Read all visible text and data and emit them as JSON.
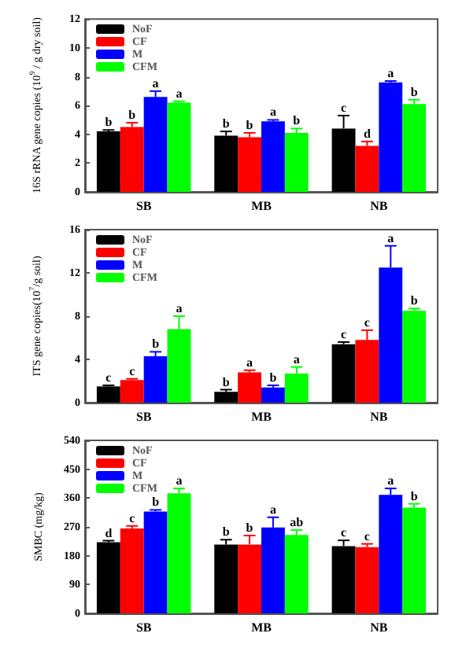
{
  "chart_data": [
    {
      "type": "bar",
      "ylabel": "16S rRNA gene copies (10$^{9}$ / g dry soil)",
      "categories": [
        "SB",
        "MB",
        "NB"
      ],
      "ylim": [
        0,
        12
      ],
      "yticks": [
        0,
        2,
        4,
        6,
        8,
        10,
        12
      ],
      "grid": false,
      "legend": "top left",
      "series": [
        {
          "name": "NoF",
          "color": "#000000",
          "values": [
            4.2,
            3.9,
            4.4
          ],
          "errors": [
            0.1,
            0.3,
            0.9
          ],
          "value_labels": [
            "b",
            "b",
            "c"
          ]
        },
        {
          "name": "CF",
          "color": "#ff0000",
          "values": [
            4.5,
            3.8,
            3.2
          ],
          "errors": [
            0.3,
            0.3,
            0.3
          ],
          "value_labels": [
            "b",
            "b",
            "d"
          ]
        },
        {
          "name": "M",
          "color": "#0000ff",
          "values": [
            6.6,
            4.9,
            7.6
          ],
          "errors": [
            0.4,
            0.1,
            0.1
          ],
          "value_labels": [
            "a",
            "a",
            "a"
          ]
        },
        {
          "name": "CFM",
          "color": "#00ff00",
          "values": [
            6.2,
            4.1,
            6.1
          ],
          "errors": [
            0.1,
            0.3,
            0.3
          ],
          "value_labels": [
            "a",
            "b",
            "b"
          ]
        }
      ]
    },
    {
      "type": "bar",
      "ylabel": "ITS gene copies(10$^{7}$/g soil)",
      "categories": [
        "SB",
        "MB",
        "NB"
      ],
      "ylim": [
        0,
        16
      ],
      "yticks": [
        0,
        4,
        8,
        12,
        16
      ],
      "grid": false,
      "legend": "top left",
      "series": [
        {
          "name": "NoF",
          "color": "#000000",
          "values": [
            1.5,
            1.0,
            5.4
          ],
          "errors": [
            0.1,
            0.2,
            0.2
          ],
          "value_labels": [
            "c",
            "b",
            "c"
          ]
        },
        {
          "name": "CF",
          "color": "#ff0000",
          "values": [
            2.1,
            2.8,
            5.8
          ],
          "errors": [
            0.1,
            0.2,
            0.9
          ],
          "value_labels": [
            "c",
            "a",
            "c"
          ]
        },
        {
          "name": "M",
          "color": "#0000ff",
          "values": [
            4.3,
            1.4,
            12.5
          ],
          "errors": [
            0.4,
            0.2,
            2.0
          ],
          "value_labels": [
            "b",
            "b",
            "a"
          ]
        },
        {
          "name": "CFM",
          "color": "#00ff00",
          "values": [
            6.8,
            2.7,
            8.5
          ],
          "errors": [
            1.2,
            0.6,
            0.2
          ],
          "value_labels": [
            "a",
            "a",
            "b"
          ]
        }
      ]
    },
    {
      "type": "bar",
      "ylabel": "SMBC (mg/kg)",
      "categories": [
        "SB",
        "MB",
        "NB"
      ],
      "ylim": [
        0,
        540
      ],
      "yticks": [
        0,
        90,
        180,
        270,
        360,
        450,
        540
      ],
      "grid": false,
      "legend": "top left",
      "series": [
        {
          "name": "NoF",
          "color": "#000000",
          "values": [
            222,
            215,
            210
          ],
          "errors": [
            5,
            15,
            18
          ],
          "value_labels": [
            "d",
            "b",
            "c"
          ]
        },
        {
          "name": "CF",
          "color": "#ff0000",
          "values": [
            265,
            215,
            207
          ],
          "errors": [
            8,
            28,
            10
          ],
          "value_labels": [
            "c",
            "b",
            "c"
          ]
        },
        {
          "name": "M",
          "color": "#0000ff",
          "values": [
            318,
            268,
            370
          ],
          "errors": [
            5,
            32,
            20
          ],
          "value_labels": [
            "b",
            "a",
            "a"
          ]
        },
        {
          "name": "CFM",
          "color": "#00ff00",
          "values": [
            375,
            245,
            330
          ],
          "errors": [
            15,
            15,
            12
          ],
          "value_labels": [
            "a",
            "ab",
            "b"
          ]
        }
      ]
    }
  ]
}
